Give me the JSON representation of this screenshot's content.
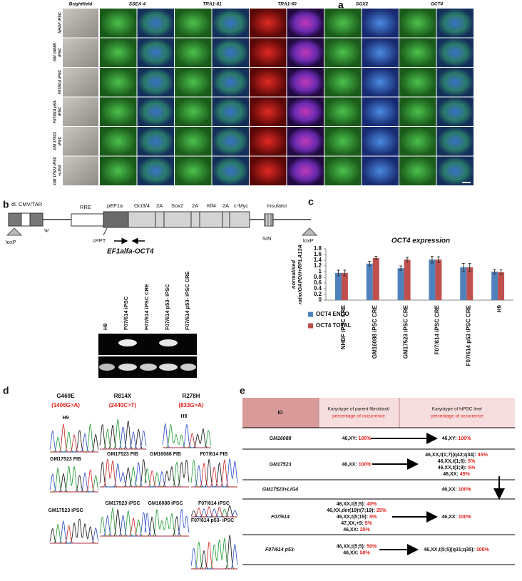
{
  "figure": {
    "a": {
      "label": "a",
      "columns": [
        "Brightfield",
        "SSEA-4",
        "TRA1-81",
        "TRA1-60",
        "SOX2",
        "OCT4"
      ],
      "rows": [
        [
          "NHDF iPSC"
        ],
        [
          "GM 16088",
          "iPSC"
        ],
        [
          "F07/614 iPSC"
        ],
        [
          "F07/614 p53-",
          "iPSC"
        ],
        [
          "GM 17523",
          "iPSC"
        ],
        [
          "GM 17523 iPSC",
          "+LIG4"
        ]
      ]
    },
    "b": {
      "label": "b",
      "construct": [
        "dl. CMV/TAR",
        "RRE",
        "pEF1a",
        "Oct3/4",
        "2A",
        "Sox2",
        "2A",
        "Klf4",
        "2A",
        "c-Myc",
        "Insulator",
        "Ψ",
        "loxP",
        "cPPT",
        "SIN",
        "loxP"
      ],
      "primer": "EF1alfa-OCT4",
      "lanes": [
        "H9",
        "F07/614 iPSC",
        "F07/614 iPSC CRE",
        "F07/614 p53- iPSC",
        "F07/614 p53- iPSC CRE"
      ]
    },
    "c": {
      "label": "c"
    },
    "d": {
      "label": "d",
      "mutations": [
        {
          "name": "G469E",
          "change": "(1406G>A)"
        },
        {
          "name": "R814X",
          "change": "(2440C>T)"
        },
        {
          "name": "R278H",
          "change": "(833G>A)"
        }
      ],
      "traces": [
        "H9",
        "GM17523 FIB",
        "GM17523 iPSC",
        "GM17523 FIB",
        "GM17523 iPSC",
        "H9",
        "GM16088 FIB",
        "GM16088 iPSC",
        "F07/614 FIB",
        "F07/614 iPSC",
        "F07/614 p53- iPSC"
      ]
    },
    "e": {
      "label": "e",
      "header": {
        "id": "ID",
        "parent": "Karyotype of parent fibroblast/",
        "parent_note": "percentage of occurrence",
        "ipsc": "Karyotype of hiPSC line/",
        "ipsc_note": "percentage of occurrence"
      },
      "rows": [
        {
          "id": "GM16088",
          "parent": [
            {
              "karyotype": "46,XY:",
              "percent": "100%"
            }
          ],
          "ipsc": [
            {
              "karyotype": "46,XY:",
              "percent": "100%"
            }
          ]
        },
        {
          "id": "GM17523",
          "parent": [
            {
              "karyotype": "46,XX:",
              "percent": "100%"
            }
          ],
          "ipsc": [
            {
              "karyotype": "46,XX,t(1;7)(q42;q34):",
              "percent": "45%"
            },
            {
              "karyotype": "46,XX,t(1;6):",
              "percent": "5%"
            },
            {
              "karyotype": "46,XX,t(1;9):",
              "percent": "5%"
            },
            {
              "karyotype": "46,XX:",
              "percent": "45%"
            }
          ]
        },
        {
          "id": "GM17523+LIG4",
          "parent": [],
          "ipsc": [
            {
              "karyotype": "46,XX:",
              "percent": "100%"
            }
          ]
        },
        {
          "id": "F07/614",
          "parent": [
            {
              "karyotype": "46,XX,t(5;5):",
              "percent": "40%"
            },
            {
              "karyotype": "46,XX,der(19)t(7;19):",
              "percent": "25%"
            },
            {
              "karyotype": "46,XX,t(5;19):",
              "percent": "5%"
            },
            {
              "karyotype": "47,XX,+9:",
              "percent": "5%"
            },
            {
              "karyotype": "46,XX:",
              "percent": "25%"
            }
          ],
          "ipsc": [
            {
              "karyotype": "46,XX:",
              "percent": "100%"
            }
          ]
        },
        {
          "id": "F07/614 p53-",
          "parent": [
            {
              "karyotype": "46,XX,t(5;5):",
              "percent": "50%"
            },
            {
              "karyotype": "46,XX:",
              "percent": "50%"
            }
          ],
          "ipsc": [
            {
              "karyotype": "46,XX,t(5;5)(q31;q35):",
              "percent": "100%"
            }
          ]
        }
      ]
    }
  },
  "chart_data": {
    "type": "bar",
    "title": "OCT4 expression",
    "y_label": [
      "normalised",
      "ratio/GAPDH+RPLA13A"
    ],
    "categories": [
      "NHDF iPSC CRE",
      "GM16088 iPSC CRE",
      "GM17523 iPSC CRE",
      "F07/614 iPSC CRE",
      "F07/614 p53 iPSC CRE",
      "H9"
    ],
    "series": [
      {
        "name": "OCT4 ENDO",
        "color": "#4f81bd",
        "values": [
          0.95,
          1.28,
          1.12,
          1.42,
          1.15,
          1.0
        ],
        "errors": [
          0.1,
          0.08,
          0.08,
          0.12,
          0.14,
          0.08
        ]
      },
      {
        "name": "OCT4 TOTAL",
        "color": "#c0504d",
        "values": [
          0.95,
          1.48,
          1.42,
          1.42,
          1.15,
          0.98
        ],
        "errors": [
          0.1,
          0.06,
          0.08,
          0.1,
          0.14,
          0.08
        ]
      }
    ],
    "ylim": [
      0,
      1.8
    ],
    "yticks": [
      0,
      0.2,
      0.4,
      0.6,
      0.8,
      1,
      1.2,
      1.4,
      1.6,
      1.8
    ],
    "grid": false,
    "legend": "bottom-left"
  }
}
